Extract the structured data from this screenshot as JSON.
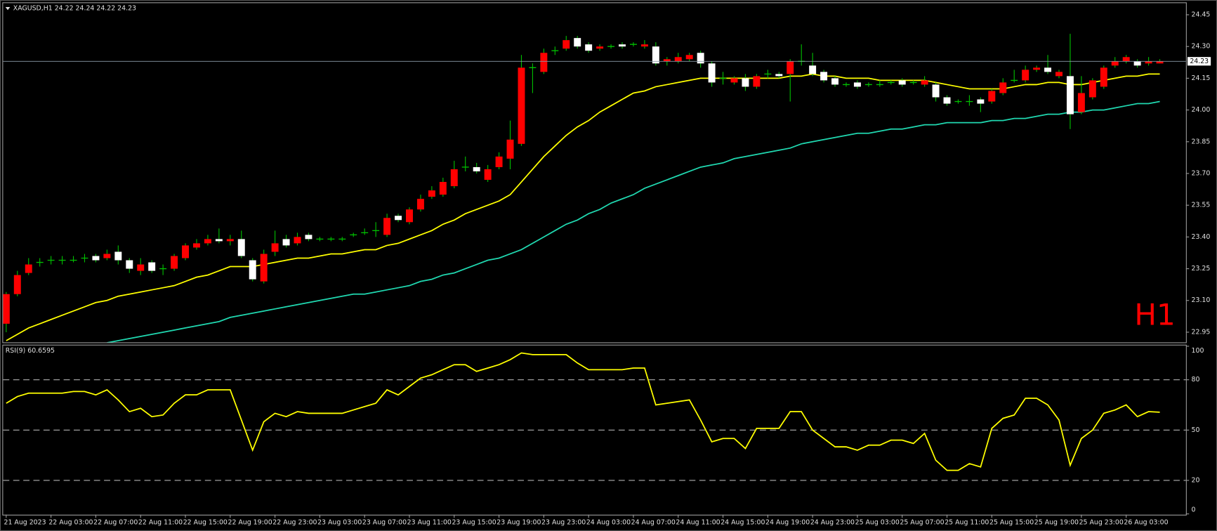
{
  "chart_data": [
    {
      "type": "candlestick",
      "title": "XAGUSD,H1  24.22 24.24 24.22 24.23",
      "annotation": "H1",
      "annotation_color": "#ff0000",
      "up_color": "#ff0000",
      "down_color": "#ffffff",
      "wick_color": "#00c000",
      "open": [
        22.99,
        23.13,
        23.23,
        23.28,
        23.29,
        23.29,
        23.29,
        23.3,
        23.31,
        23.3,
        23.33,
        23.29,
        23.24,
        23.28,
        23.25,
        23.25,
        23.3,
        23.35,
        23.37,
        23.39,
        23.38,
        23.39,
        23.29,
        23.19,
        23.33,
        23.39,
        23.37,
        23.41,
        23.39,
        23.39,
        23.39,
        23.41,
        23.42,
        23.43,
        23.41,
        23.5,
        23.47,
        23.53,
        23.59,
        23.6,
        23.64,
        23.73,
        23.73,
        23.67,
        23.73,
        23.77,
        23.84,
        24.2,
        24.18,
        24.28,
        24.29,
        24.34,
        24.31,
        24.29,
        24.3,
        24.31,
        24.31,
        24.3,
        24.3,
        24.23,
        24.23,
        24.24,
        24.27,
        24.22,
        24.15,
        24.13,
        24.15,
        24.11,
        24.17,
        24.17,
        24.17,
        24.23,
        24.21,
        24.18,
        24.15,
        24.12,
        24.13,
        24.12,
        24.12,
        24.13,
        24.14,
        24.13,
        24.12,
        24.12,
        24.06,
        24.04,
        24.04,
        24.05,
        24.04,
        24.08,
        24.14,
        24.14,
        24.19,
        24.2,
        24.16,
        24.16,
        23.99,
        24.06,
        24.11,
        24.21,
        24.23,
        24.23,
        24.22,
        24.22
      ],
      "high": [
        23.14,
        23.24,
        23.3,
        23.3,
        23.31,
        23.31,
        23.31,
        23.32,
        23.32,
        23.34,
        23.36,
        23.3,
        23.3,
        23.29,
        23.27,
        23.32,
        23.37,
        23.39,
        23.41,
        23.44,
        23.41,
        23.43,
        23.3,
        23.34,
        23.43,
        23.41,
        23.42,
        23.42,
        23.4,
        23.4,
        23.4,
        23.42,
        23.44,
        23.47,
        23.51,
        23.51,
        23.54,
        23.6,
        23.64,
        23.68,
        23.76,
        23.78,
        23.75,
        23.74,
        23.8,
        23.95,
        24.26,
        24.22,
        24.29,
        24.3,
        24.35,
        24.35,
        24.32,
        24.31,
        24.31,
        24.32,
        24.32,
        24.33,
        24.32,
        24.25,
        24.27,
        24.27,
        24.28,
        24.23,
        24.18,
        24.16,
        24.17,
        24.17,
        24.19,
        24.18,
        24.24,
        24.31,
        24.27,
        24.19,
        24.16,
        24.13,
        24.14,
        24.13,
        24.14,
        24.14,
        24.15,
        24.14,
        24.16,
        24.13,
        24.07,
        24.05,
        24.07,
        24.06,
        24.1,
        24.15,
        24.19,
        24.21,
        24.21,
        24.26,
        24.19,
        24.36,
        24.16,
        24.15,
        24.21,
        24.25,
        24.26,
        24.24,
        24.25,
        24.24
      ],
      "low": [
        22.95,
        23.12,
        23.22,
        23.26,
        23.27,
        23.27,
        23.28,
        23.28,
        23.28,
        23.29,
        23.27,
        23.23,
        23.22,
        23.23,
        23.22,
        23.24,
        23.29,
        23.34,
        23.36,
        23.37,
        23.36,
        23.3,
        23.19,
        23.18,
        23.31,
        23.35,
        23.36,
        23.38,
        23.38,
        23.38,
        23.38,
        23.4,
        23.41,
        23.4,
        23.4,
        23.47,
        23.46,
        23.52,
        23.58,
        23.59,
        23.63,
        23.71,
        23.7,
        23.66,
        23.72,
        23.72,
        23.83,
        24.08,
        24.17,
        24.26,
        24.28,
        24.29,
        24.27,
        24.28,
        24.29,
        24.29,
        24.3,
        24.29,
        24.21,
        24.21,
        24.22,
        24.23,
        24.2,
        24.11,
        24.12,
        24.12,
        24.09,
        24.1,
        24.15,
        24.15,
        24.04,
        24.21,
        24.16,
        24.13,
        24.11,
        24.11,
        24.1,
        24.11,
        24.11,
        24.12,
        24.11,
        24.12,
        24.11,
        24.04,
        24.02,
        24.03,
        24.02,
        23.99,
        24.03,
        24.07,
        24.13,
        24.13,
        24.18,
        24.17,
        24.15,
        23.91,
        23.98,
        24.05,
        24.1,
        24.2,
        24.22,
        24.2,
        24.21,
        24.22
      ],
      "close": [
        23.13,
        23.22,
        23.27,
        23.28,
        23.29,
        23.29,
        23.29,
        23.3,
        23.29,
        23.32,
        23.29,
        23.25,
        23.27,
        23.24,
        23.25,
        23.31,
        23.36,
        23.37,
        23.39,
        23.38,
        23.39,
        23.31,
        23.2,
        23.32,
        23.37,
        23.36,
        23.4,
        23.39,
        23.39,
        23.39,
        23.39,
        23.41,
        23.42,
        23.43,
        23.49,
        23.48,
        23.53,
        23.58,
        23.62,
        23.66,
        23.72,
        23.73,
        23.71,
        23.72,
        23.78,
        23.86,
        24.2,
        24.2,
        24.27,
        24.28,
        24.33,
        24.3,
        24.28,
        24.3,
        24.3,
        24.3,
        24.31,
        24.31,
        24.22,
        24.24,
        24.25,
        24.26,
        24.22,
        24.13,
        24.15,
        24.15,
        24.11,
        24.16,
        24.17,
        24.16,
        24.23,
        24.23,
        24.17,
        24.14,
        24.12,
        24.12,
        24.11,
        24.12,
        24.12,
        24.13,
        24.12,
        24.13,
        24.14,
        24.06,
        24.03,
        24.04,
        24.04,
        24.03,
        24.09,
        24.13,
        24.14,
        24.19,
        24.2,
        24.18,
        24.18,
        23.98,
        24.08,
        24.14,
        24.2,
        24.23,
        24.25,
        24.21,
        24.23,
        24.23
      ],
      "overlays": [
        {
          "color": "#ffff00",
          "values": [
            22.91,
            22.94,
            22.97,
            22.99,
            23.01,
            23.03,
            23.05,
            23.07,
            23.09,
            23.1,
            23.12,
            23.13,
            23.14,
            23.15,
            23.16,
            23.17,
            23.19,
            23.21,
            23.22,
            23.24,
            23.26,
            23.26,
            23.26,
            23.27,
            23.28,
            23.29,
            23.3,
            23.3,
            23.31,
            23.32,
            23.32,
            23.33,
            23.34,
            23.34,
            23.36,
            23.37,
            23.39,
            23.41,
            23.43,
            23.46,
            23.48,
            23.51,
            23.53,
            23.55,
            23.57,
            23.6,
            23.66,
            23.72,
            23.78,
            23.83,
            23.88,
            23.92,
            23.95,
            23.99,
            24.02,
            24.05,
            24.08,
            24.09,
            24.11,
            24.12,
            24.13,
            24.14,
            24.15,
            24.15,
            24.15,
            24.15,
            24.15,
            24.15,
            24.15,
            24.15,
            24.16,
            24.16,
            24.17,
            24.16,
            24.16,
            24.15,
            24.15,
            24.15,
            24.14,
            24.14,
            24.14,
            24.14,
            24.14,
            24.13,
            24.12,
            24.11,
            24.1,
            24.1,
            24.1,
            24.1,
            24.11,
            24.12,
            24.12,
            24.13,
            24.13,
            24.12,
            24.12,
            24.13,
            24.14,
            24.15,
            24.16,
            24.16,
            24.17,
            24.17
          ]
        },
        {
          "color": "#20d8b0",
          "values": [
            null,
            null,
            null,
            null,
            null,
            null,
            null,
            null,
            null,
            22.9,
            22.91,
            22.92,
            22.93,
            22.94,
            22.95,
            22.96,
            22.97,
            22.98,
            22.99,
            23.0,
            23.02,
            23.03,
            23.04,
            23.05,
            23.06,
            23.07,
            23.08,
            23.09,
            23.1,
            23.11,
            23.12,
            23.13,
            23.13,
            23.14,
            23.15,
            23.16,
            23.17,
            23.19,
            23.2,
            23.22,
            23.23,
            23.25,
            23.27,
            23.29,
            23.3,
            23.32,
            23.34,
            23.37,
            23.4,
            23.43,
            23.46,
            23.48,
            23.51,
            23.53,
            23.56,
            23.58,
            23.6,
            23.63,
            23.65,
            23.67,
            23.69,
            23.71,
            23.73,
            23.74,
            23.75,
            23.77,
            23.78,
            23.79,
            23.8,
            23.81,
            23.82,
            23.84,
            23.85,
            23.86,
            23.87,
            23.88,
            23.89,
            23.89,
            23.9,
            23.91,
            23.91,
            23.92,
            23.93,
            23.93,
            23.94,
            23.94,
            23.94,
            23.94,
            23.95,
            23.95,
            23.96,
            23.96,
            23.97,
            23.98,
            23.98,
            23.99,
            23.99,
            24.0,
            24.0,
            24.01,
            24.02,
            24.03,
            24.03,
            24.04
          ]
        }
      ],
      "last_price": 24.23,
      "ylim": [
        22.902,
        24.505
      ],
      "yticks": [
        22.95,
        {
          "value": 23.1,
          "label": "23.10"
        },
        23.25,
        {
          "value": 23.4,
          "label": "23.40"
        },
        23.55,
        {
          "value": 23.7,
          "label": "23.70"
        },
        23.85,
        {
          "value": 24.0,
          "label": "24.00"
        },
        24.15,
        {
          "value": 24.3,
          "label": "24.30"
        },
        24.45
      ]
    },
    {
      "type": "line",
      "title": "RSI(9) 60.6595",
      "color": "#ffff00",
      "categories": [
        "21 Aug 2023",
        null,
        null,
        null,
        "22 Aug 03:00",
        null,
        null,
        null,
        "22 Aug 07:00",
        null,
        null,
        null,
        "22 Aug 11:00",
        null,
        null,
        null,
        "22 Aug 15:00",
        null,
        null,
        null,
        "22 Aug 19:00",
        null,
        null,
        null,
        "22 Aug 23:00",
        null,
        null,
        null,
        "23 Aug 03:00",
        null,
        null,
        null,
        "23 Aug 07:00",
        null,
        null,
        null,
        "23 Aug 11:00",
        null,
        null,
        null,
        "23 Aug 15:00",
        null,
        null,
        null,
        "23 Aug 19:00",
        null,
        null,
        null,
        "23 Aug 23:00",
        null,
        null,
        null,
        "24 Aug 03:00",
        null,
        null,
        null,
        "24 Aug 07:00",
        null,
        null,
        null,
        "24 Aug 11:00",
        null,
        null,
        null,
        "24 Aug 15:00",
        null,
        null,
        null,
        "24 Aug 19:00",
        null,
        null,
        null,
        "24 Aug 23:00",
        null,
        null,
        null,
        "25 Aug 03:00",
        null,
        null,
        null,
        "25 Aug 07:00",
        null,
        null,
        null,
        "25 Aug 11:00",
        null,
        null,
        null,
        "25 Aug 15:00",
        null,
        null,
        null,
        "25 Aug 19:00",
        null,
        null,
        null,
        "25 Aug 23:00",
        null,
        null,
        null,
        "26 Aug 03:00",
        null,
        null,
        null
      ],
      "values": [
        66,
        70,
        72,
        72,
        72,
        72,
        73,
        73,
        71,
        74,
        68,
        61,
        63,
        58,
        59,
        66,
        71,
        71,
        74,
        74,
        74,
        56,
        38,
        55,
        60,
        58,
        61,
        60,
        60,
        60,
        60,
        62,
        64,
        66,
        74,
        71,
        76,
        81,
        83,
        86,
        89,
        89,
        85,
        87,
        89,
        92,
        96,
        95,
        95,
        95,
        95,
        90,
        86,
        86,
        86,
        86,
        87,
        87,
        65,
        66,
        67,
        68,
        56,
        43,
        45,
        45,
        39,
        51,
        51,
        51,
        61,
        61,
        50,
        45,
        40,
        40,
        38,
        41,
        41,
        44,
        44,
        42,
        48,
        32,
        26,
        26,
        30,
        28,
        51,
        57,
        59,
        69,
        69,
        65,
        56,
        29,
        45,
        50,
        60,
        62,
        65,
        58,
        61,
        60.66
      ],
      "ylim": [
        0,
        100
      ],
      "yticks": [
        0,
        20,
        50,
        80,
        100
      ],
      "levels": [
        20,
        50,
        80
      ]
    }
  ]
}
